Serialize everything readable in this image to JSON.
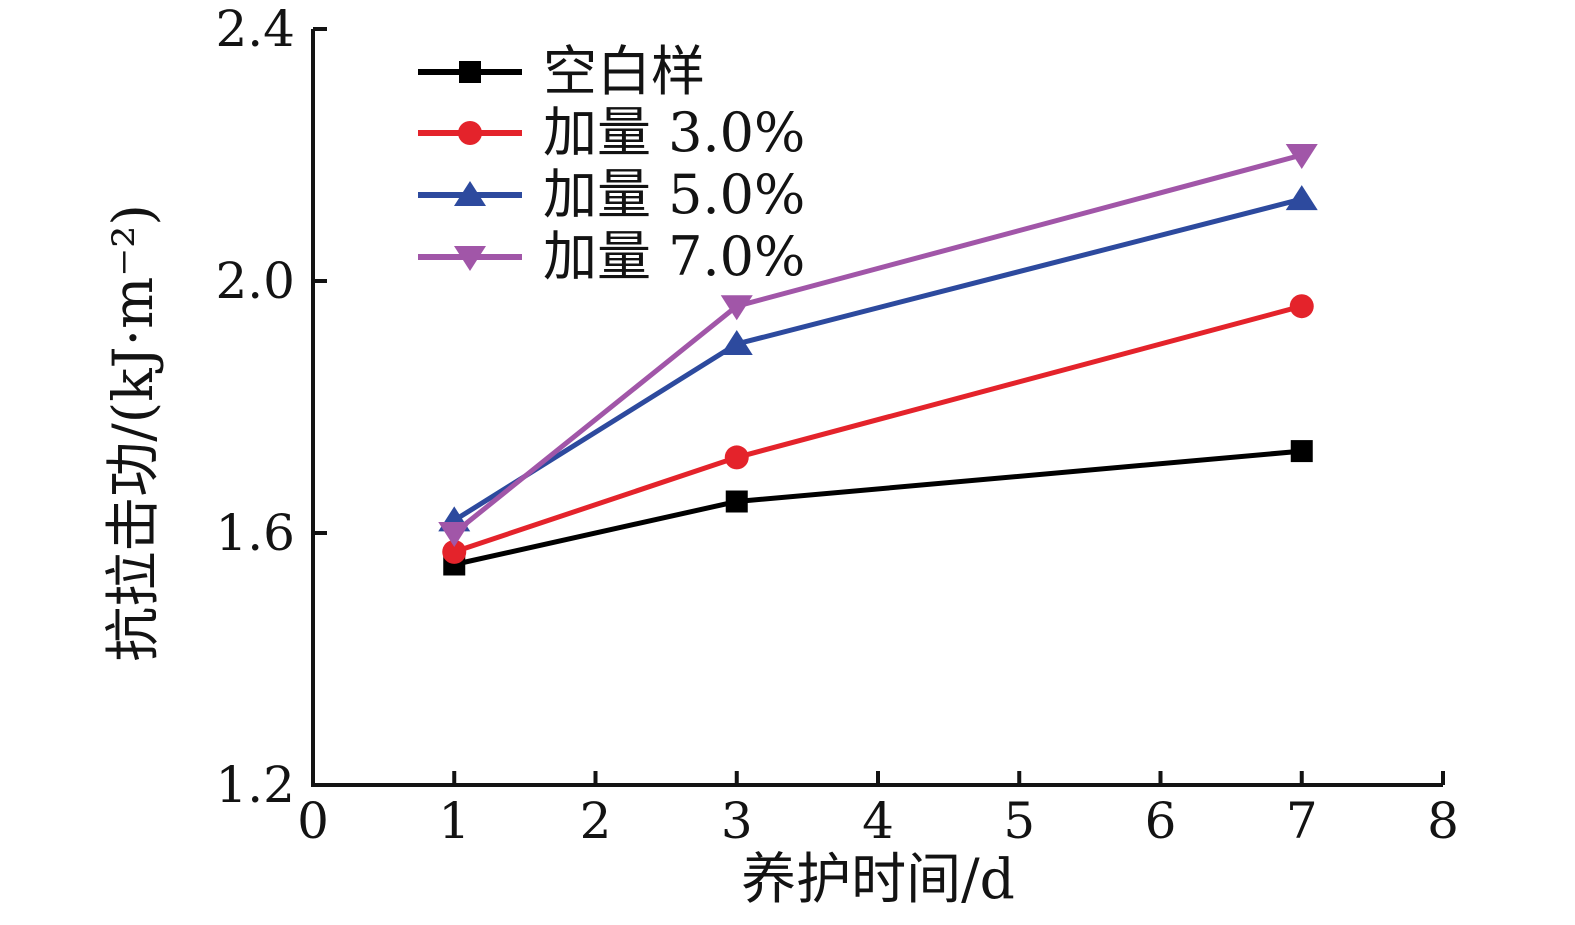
{
  "figure": {
    "background": "#ffffff",
    "axis_color": "#131313"
  },
  "chart_data": {
    "type": "line",
    "title": "",
    "xlabel": "养护时间/d",
    "ylabel": "抗拉击功/(kJ·m⁻²)",
    "xlim": [
      0,
      8
    ],
    "ylim": [
      1.2,
      2.4
    ],
    "x_ticks": {
      "values": [
        0,
        1,
        2,
        3,
        4,
        5,
        6,
        7,
        8
      ],
      "labels": [
        "0",
        "1",
        "2",
        "3",
        "4",
        "5",
        "6",
        "7",
        "8"
      ]
    },
    "y_ticks": {
      "values": [
        1.2,
        1.6,
        2.0,
        2.4
      ],
      "labels": [
        "1.2",
        "1.6",
        "2.0",
        "2.4"
      ]
    },
    "x": [
      1,
      3,
      7
    ],
    "series": [
      {
        "name": "空白样",
        "color": "#000000",
        "marker": "square",
        "values": [
          1.55,
          1.65,
          1.73
        ]
      },
      {
        "name": "加量 3.0%",
        "color": "#e4232b",
        "marker": "circle",
        "values": [
          1.57,
          1.72,
          1.96
        ]
      },
      {
        "name": "加量 5.0%",
        "color": "#2d4a9e",
        "marker": "triangle-up",
        "values": [
          1.62,
          1.9,
          2.13
        ]
      },
      {
        "name": "加量 7.0%",
        "color": "#a156a8",
        "marker": "triangle-down",
        "values": [
          1.6,
          1.96,
          2.2
        ]
      }
    ],
    "legend": {
      "position": "upper-left-inside",
      "entries": [
        "空白样",
        "加量 3.0%",
        "加量 5.0%",
        "加量 7.0%"
      ]
    },
    "grid": false
  }
}
